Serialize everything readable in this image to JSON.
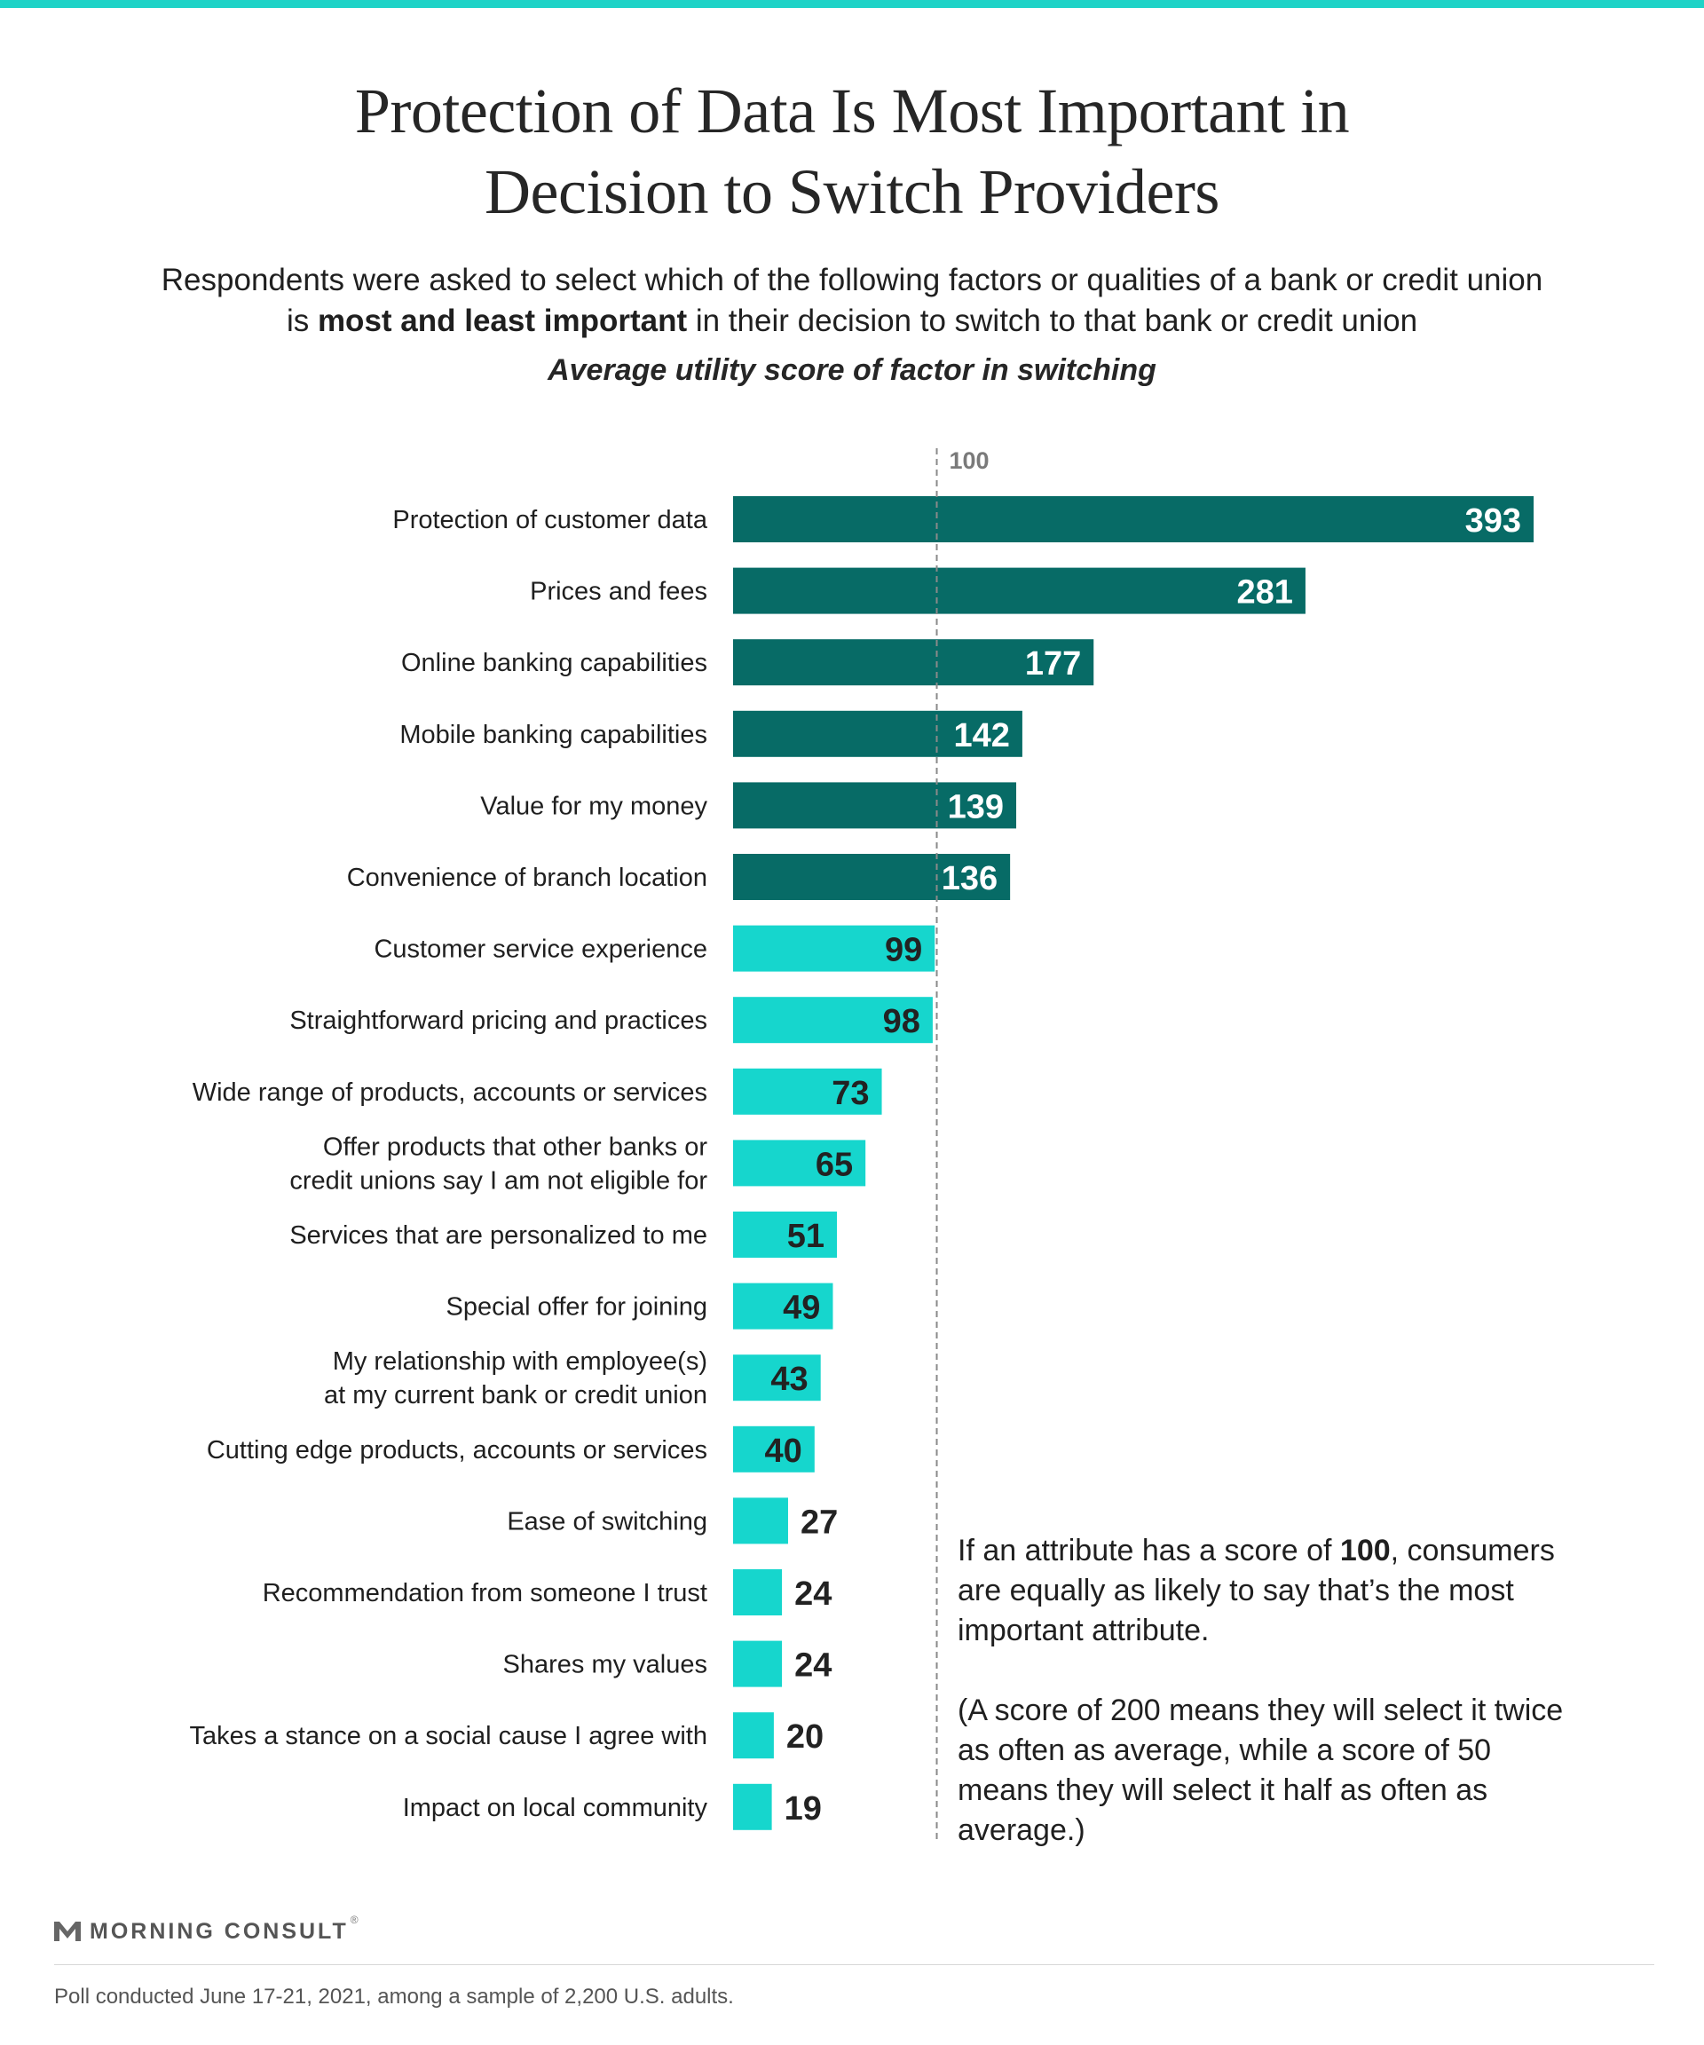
{
  "header": {
    "title_line1": "Protection of Data Is Most Important in",
    "title_line2": "Decision to Switch Providers",
    "subtitle_line1": "Respondents were asked to select which of the following factors or qualities of a bank or credit union",
    "subtitle_line2_pre": "is ",
    "subtitle_line2_bold": "most and least important",
    "subtitle_line2_post": " in their decision to switch to that bank or credit union"
  },
  "chart_data": {
    "type": "bar",
    "orientation": "horizontal",
    "title": "Average utility score of factor in switching",
    "reference_line": {
      "value": 100,
      "label": "100",
      "style": "dashed"
    },
    "categories": [
      "Protection of customer data",
      "Prices and fees",
      "Online banking capabilities",
      "Mobile banking capabilities",
      "Value for my money",
      "Convenience of branch location",
      "Customer service experience",
      "Straightforward pricing and practices",
      "Wide range of products, accounts or services",
      "Offer products that other banks or|credit unions say I am not eligible for",
      "Services that are personalized to me",
      "Special offer for joining",
      "My relationship with employee(s)|at my current bank or credit union",
      "Cutting edge products, accounts or services",
      "Ease of switching",
      "Recommendation from someone I trust",
      "Shares my values",
      "Takes a stance on a social cause I agree with",
      "Impact on local community"
    ],
    "values": [
      393,
      281,
      177,
      142,
      139,
      136,
      99,
      98,
      73,
      65,
      51,
      49,
      43,
      40,
      27,
      24,
      24,
      20,
      19
    ],
    "xlim": [
      0,
      393
    ],
    "colors": {
      "above_100": "#076b66",
      "below_100": "#16d6cd",
      "label_dark": "#222222",
      "label_light": "#ffffff"
    },
    "grid": false,
    "legend": "none"
  },
  "note": {
    "p1_pre": "If an attribute has a score of ",
    "p1_bold": "100",
    "p1_post": ", consumers are equally as likely to say that’s the most important attribute.",
    "p2": "(A score of 200 means they will select it twice as often as average, while a score of 50 means they will select it half as often as average.)"
  },
  "footer": {
    "logo_text": "MORNING CONSULT",
    "logo_mark": "®",
    "source": "Poll conducted June 17-21, 2021, among a sample of 2,200 U.S. adults."
  },
  "icons": {
    "logo": "morning-consult-m-icon"
  }
}
